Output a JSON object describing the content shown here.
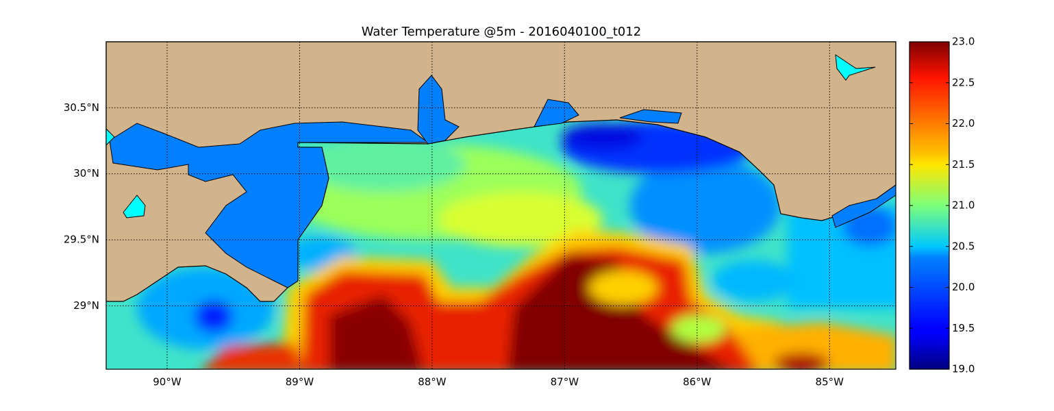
{
  "map": {
    "title": "Water Temperature @5m - 2016040100_t012",
    "xlim": [
      -90.46,
      -84.5
    ],
    "ylim": [
      28.52,
      31.0
    ],
    "xticks": [
      {
        "value": -90,
        "label": "90°W"
      },
      {
        "value": -89,
        "label": "89°W"
      },
      {
        "value": -88,
        "label": "88°W"
      },
      {
        "value": -87,
        "label": "87°W"
      },
      {
        "value": -86,
        "label": "86°W"
      },
      {
        "value": -85,
        "label": "85°W"
      }
    ],
    "yticks": [
      {
        "value": 29,
        "label": "29°N"
      },
      {
        "value": 29.5,
        "label": "29.5°N"
      },
      {
        "value": 30,
        "label": "30°N"
      },
      {
        "value": 30.5,
        "label": "30.5°N"
      }
    ],
    "grid": true,
    "colorbar": {
      "lim": [
        19,
        23
      ],
      "ticks": [
        {
          "value": 19,
          "label": "19.0"
        },
        {
          "value": 19.5,
          "label": "19.5"
        },
        {
          "value": 20,
          "label": "20.0"
        },
        {
          "value": 20.5,
          "label": "20.5"
        },
        {
          "value": 21,
          "label": "21.0"
        },
        {
          "value": 21.5,
          "label": "21.5"
        },
        {
          "value": 22,
          "label": "22.0"
        },
        {
          "value": 22.5,
          "label": "22.5"
        },
        {
          "value": 23,
          "label": "23.0"
        }
      ]
    }
  }
}
